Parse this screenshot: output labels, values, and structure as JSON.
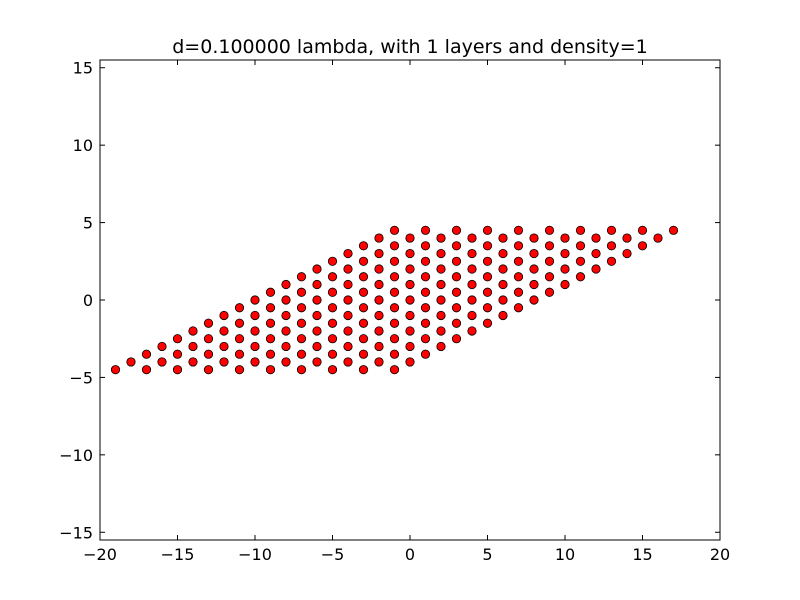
{
  "chart_data": {
    "type": "scatter",
    "title": "d=0.100000 lambda, with 1 layers and density=1",
    "xlabel": "",
    "ylabel": "",
    "xlim": [
      -20,
      20
    ],
    "ylim": [
      -15.5,
      15.5
    ],
    "xticks": [
      -20,
      -15,
      -10,
      -5,
      0,
      5,
      10,
      15,
      20
    ],
    "xtick_labels": [
      "−20",
      "−15",
      "−10",
      "−5",
      "0",
      "5",
      "10",
      "15",
      "20"
    ],
    "yticks": [
      -15,
      -10,
      -5,
      0,
      5,
      10,
      15
    ],
    "ytick_labels": [
      "−15",
      "−10",
      "−5",
      "0",
      "5",
      "10",
      "15"
    ],
    "grid": false,
    "marker_color": "#ff0000",
    "marker_edge_color": "#000000",
    "series": [
      {
        "name": "points",
        "lattice_rows": [
          {
            "y": -4.5,
            "x_start": -19,
            "count": 10
          },
          {
            "y": -4.0,
            "x_start": -18,
            "count": 10
          },
          {
            "y": -3.5,
            "x_start": -17,
            "count": 10
          },
          {
            "y": -3.0,
            "x_start": -16,
            "count": 10
          },
          {
            "y": -2.5,
            "x_start": -15,
            "count": 10
          },
          {
            "y": -2.0,
            "x_start": -14,
            "count": 10
          },
          {
            "y": -1.5,
            "x_start": -13,
            "count": 10
          },
          {
            "y": -1.0,
            "x_start": -12,
            "count": 10
          },
          {
            "y": -0.5,
            "x_start": -11,
            "count": 10
          },
          {
            "y": 0.0,
            "x_start": -10,
            "count": 10
          },
          {
            "y": 0.5,
            "x_start": -9,
            "count": 10
          },
          {
            "y": 1.0,
            "x_start": -8,
            "count": 10
          },
          {
            "y": 1.5,
            "x_start": -7,
            "count": 10
          },
          {
            "y": 2.0,
            "x_start": -6,
            "count": 10
          },
          {
            "y": 2.5,
            "x_start": -5,
            "count": 10
          },
          {
            "y": 3.0,
            "x_start": -4,
            "count": 10
          },
          {
            "y": 3.5,
            "x_start": -3,
            "count": 10
          },
          {
            "y": 4.0,
            "x_start": -2,
            "count": 10
          },
          {
            "y": 4.5,
            "x_start": -1,
            "count": 10
          }
        ]
      }
    ]
  }
}
